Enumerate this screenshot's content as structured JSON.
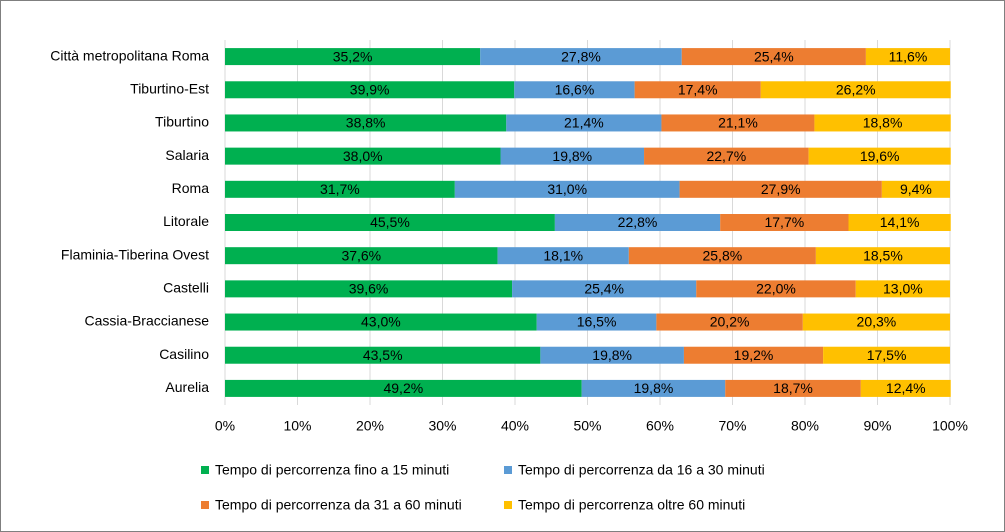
{
  "chart_data": {
    "type": "stacked-bar-horizontal",
    "categories": [
      "Città metropolitana Roma",
      "Tiburtino-Est",
      "Tiburtino",
      "Salaria",
      "Roma",
      "Litorale",
      "Flaminia-Tiberina Ovest",
      "Castelli",
      "Cassia-Braccianese",
      "Casilino",
      "Aurelia"
    ],
    "series": [
      {
        "name": "Tempo di percorrenza fino a 15 minuti",
        "color": "#00b050",
        "values": [
          35.2,
          39.9,
          38.8,
          38,
          31.7,
          45.5,
          37.6,
          39.6,
          43,
          43.5,
          49.2
        ],
        "value_labels": [
          "35,2%",
          "39,9%",
          "38,8%",
          "38,0%",
          "31,7%",
          "45,5%",
          "37,6%",
          "39,6%",
          "43,0%",
          "43,5%",
          "49,2%"
        ]
      },
      {
        "name": "Tempo di percorrenza da 16 a 30 minuti",
        "color": "#5b9bd5",
        "values": [
          27.8,
          16.6,
          21.4,
          19.8,
          31,
          22.8,
          18.1,
          25.4,
          16.5,
          19.8,
          19.8
        ],
        "value_labels": [
          "27,8%",
          "16,6%",
          "21,4%",
          "19,8%",
          "31,0%",
          "22,8%",
          "18,1%",
          "25,4%",
          "16,5%",
          "19,8%",
          "19,8%"
        ]
      },
      {
        "name": "Tempo di percorrenza da 31 a 60 minuti",
        "color": "#ed7d31",
        "values": [
          25.4,
          17.4,
          21.1,
          22.7,
          27.9,
          17.7,
          25.8,
          22,
          20.2,
          19.2,
          18.7
        ],
        "value_labels": [
          "25,4%",
          "17,4%",
          "21,1%",
          "22,7%",
          "27,9%",
          "17,7%",
          "25,8%",
          "22,0%",
          "20,2%",
          "19,2%",
          "18,7%"
        ]
      },
      {
        "name": "Tempo di percorrenza oltre 60 minuti",
        "color": "#ffc000",
        "values": [
          11.6,
          26.2,
          18.8,
          19.6,
          9.4,
          14.1,
          18.5,
          13,
          20.3,
          17.5,
          12.4
        ],
        "value_labels": [
          "11,6%",
          "26,2%",
          "18,8%",
          "19,6%",
          "9,4%",
          "14,1%",
          "18,5%",
          "13,0%",
          "20,3%",
          "17,5%",
          "12,4%"
        ]
      }
    ],
    "xlim": [
      0,
      100
    ],
    "xticks": [
      {
        "value": 0,
        "label": "0%"
      },
      {
        "value": 10,
        "label": "10%"
      },
      {
        "value": 20,
        "label": "20%"
      },
      {
        "value": 30,
        "label": "30%"
      },
      {
        "value": 40,
        "label": "40%"
      },
      {
        "value": 50,
        "label": "50%"
      },
      {
        "value": 60,
        "label": "60%"
      },
      {
        "value": 70,
        "label": "70%"
      },
      {
        "value": 80,
        "label": "80%"
      },
      {
        "value": 90,
        "label": "90%"
      },
      {
        "value": 100,
        "label": "100%"
      }
    ],
    "grid": true,
    "legend": "bottom"
  }
}
